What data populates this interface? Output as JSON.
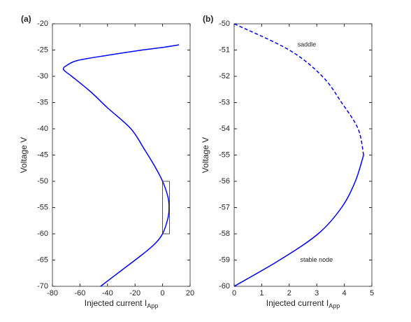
{
  "chart_data": [
    {
      "type": "line",
      "label": "(a)",
      "xlabel": "Injected current I",
      "xlabel_sub": "App",
      "ylabel": "Voltage V",
      "xlim": [
        -80,
        20
      ],
      "ylim": [
        -70,
        -20
      ],
      "xticks": [
        -80,
        -60,
        -40,
        -20,
        0,
        20
      ],
      "yticks": [
        -70,
        -65,
        -60,
        -55,
        -50,
        -45,
        -40,
        -35,
        -30,
        -25,
        -20
      ],
      "series": [
        {
          "color": "#0000ff",
          "dash": false,
          "x": [
            -45,
            -30,
            -15,
            -6,
            0,
            3.9,
            4.7,
            3.9,
            0,
            -6,
            -13,
            -23,
            -40,
            -52,
            -66,
            -71,
            -72,
            -70,
            -62,
            -40,
            -15,
            0,
            12
          ],
          "values": [
            -70,
            -67,
            -64,
            -62,
            -60,
            -57,
            -55,
            -53,
            -50,
            -47,
            -44,
            -40,
            -36,
            -33,
            -30,
            -29,
            -28.5,
            -28,
            -27,
            -26,
            -25,
            -24.5,
            -24
          ]
        }
      ],
      "zoom_box": {
        "xlim": [
          0,
          5
        ],
        "ylim": [
          -60,
          -50
        ]
      }
    },
    {
      "type": "line",
      "label": "(b)",
      "xlabel": "Injected current I",
      "xlabel_sub": "App",
      "ylabel": "Voltage V",
      "xlim": [
        0,
        5
      ],
      "ylim": [
        -60,
        -50
      ],
      "xticks": [
        0,
        1,
        2,
        3,
        4,
        5
      ],
      "yticks": [
        -60,
        -59,
        -58,
        -57,
        -56,
        -55,
        -54,
        -53,
        -52,
        -51,
        -50
      ],
      "series": [
        {
          "color": "#0000ff",
          "dash": false,
          "x": [
            0,
            1.65,
            3.05,
            3.9,
            4.4,
            4.7
          ],
          "values": [
            -60,
            -59,
            -58,
            -57,
            -56,
            -55
          ]
        },
        {
          "color": "#0000ff",
          "dash": true,
          "x": [
            4.7,
            4.5,
            3.9,
            3.2,
            2.0,
            0
          ],
          "values": [
            -55,
            -54,
            -53,
            -52,
            -51,
            -50
          ]
        }
      ],
      "annotations": [
        "saddle",
        "stable node"
      ]
    }
  ]
}
